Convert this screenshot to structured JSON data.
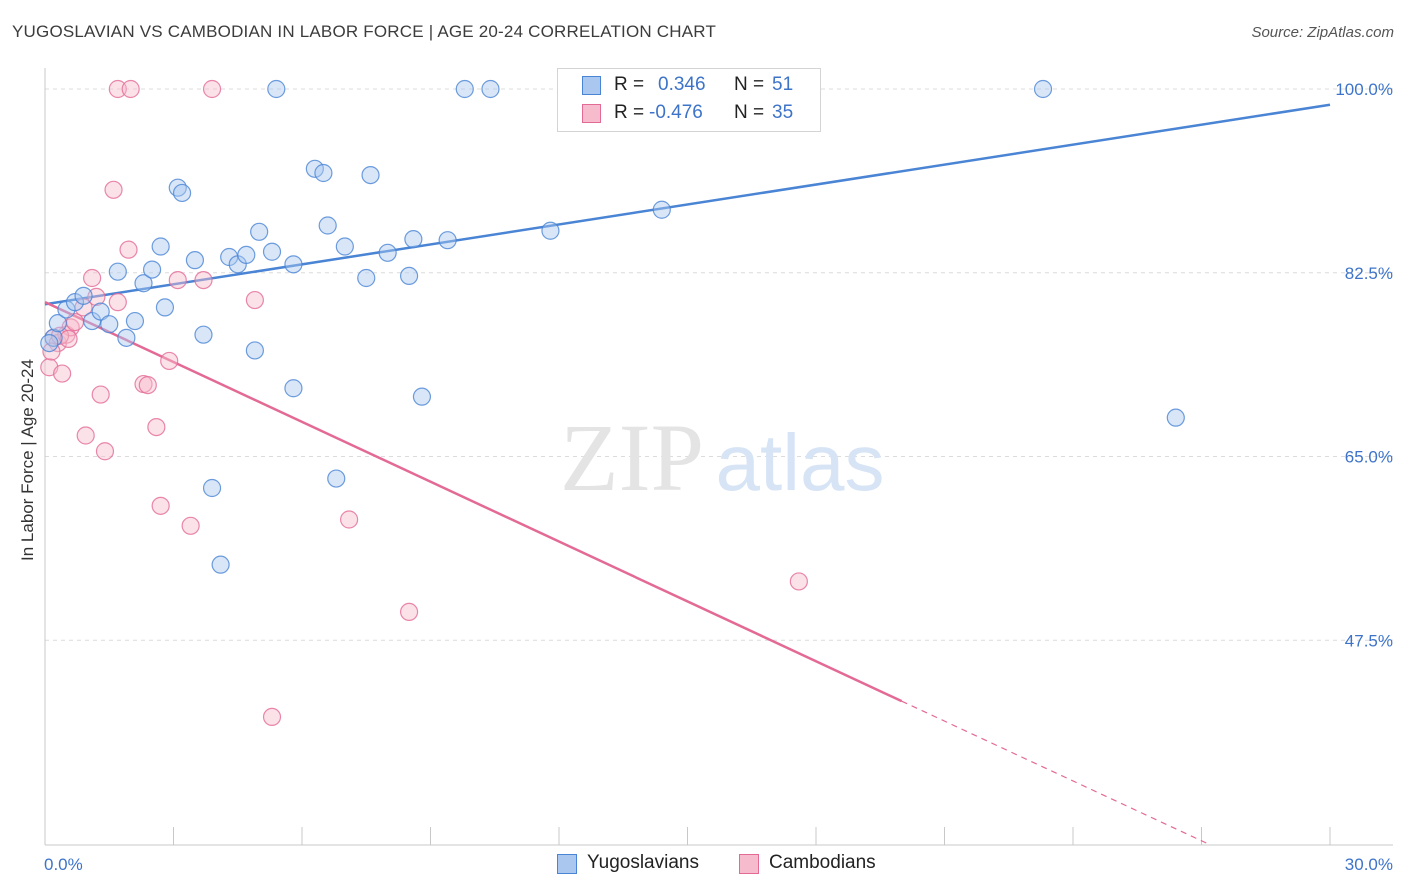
{
  "title": "YUGOSLAVIAN VS CAMBODIAN IN LABOR FORCE | AGE 20-24 CORRELATION CHART",
  "source": "Source: ZipAtlas.com",
  "watermark": {
    "zip": "ZIP",
    "atlas": "atlas"
  },
  "legend": {
    "r_label": "R =",
    "n_label": "N =",
    "rows": [
      {
        "r": "0.346",
        "n": "51"
      },
      {
        "r": "-0.476",
        "n": "35"
      }
    ]
  },
  "chart_data": {
    "type": "scatter",
    "title": "YUGOSLAVIAN VS CAMBODIAN IN LABOR FORCE | AGE 20-24 CORRELATION CHART",
    "xlabel": "",
    "ylabel": "In Labor Force | Age 20-24",
    "xlim": [
      0,
      30
    ],
    "ylim": [
      28,
      102
    ],
    "x_tick_labels": [
      "0.0%",
      "30.0%"
    ],
    "y_ticks": [
      {
        "value": 100,
        "label": "100.0%"
      },
      {
        "value": 82.5,
        "label": "82.5%"
      },
      {
        "value": 65,
        "label": "65.0%"
      },
      {
        "value": 47.5,
        "label": "47.5%"
      }
    ],
    "grid": "horizontal dashed",
    "legend_position": "top-center",
    "series": [
      {
        "name": "Yugoslavians",
        "color": "#4a84d4",
        "fill": "#a9c7ef",
        "trend": {
          "x1": 0,
          "y1": 79.5,
          "x2": 30,
          "y2": 98.5
        },
        "points": [
          {
            "x": 0.2,
            "y": 76.3
          },
          {
            "x": 0.3,
            "y": 77.7
          },
          {
            "x": 0.5,
            "y": 79.0
          },
          {
            "x": 0.7,
            "y": 79.7
          },
          {
            "x": 0.9,
            "y": 80.3
          },
          {
            "x": 1.1,
            "y": 77.9
          },
          {
            "x": 1.3,
            "y": 78.8
          },
          {
            "x": 1.5,
            "y": 77.6
          },
          {
            "x": 1.7,
            "y": 82.6
          },
          {
            "x": 1.9,
            "y": 76.3
          },
          {
            "x": 2.1,
            "y": 77.9
          },
          {
            "x": 2.3,
            "y": 81.5
          },
          {
            "x": 2.5,
            "y": 82.8
          },
          {
            "x": 2.7,
            "y": 85.0
          },
          {
            "x": 2.8,
            "y": 79.2
          },
          {
            "x": 3.1,
            "y": 90.6
          },
          {
            "x": 3.2,
            "y": 90.1
          },
          {
            "x": 3.5,
            "y": 83.7
          },
          {
            "x": 3.7,
            "y": 76.6
          },
          {
            "x": 3.9,
            "y": 62.0
          },
          {
            "x": 4.1,
            "y": 54.7
          },
          {
            "x": 4.3,
            "y": 84.0
          },
          {
            "x": 4.5,
            "y": 83.3
          },
          {
            "x": 4.7,
            "y": 84.2
          },
          {
            "x": 4.9,
            "y": 75.1
          },
          {
            "x": 5.0,
            "y": 86.4
          },
          {
            "x": 5.3,
            "y": 84.5
          },
          {
            "x": 5.4,
            "y": 100.0
          },
          {
            "x": 5.8,
            "y": 83.3
          },
          {
            "x": 5.8,
            "y": 71.5
          },
          {
            "x": 6.3,
            "y": 92.4
          },
          {
            "x": 6.5,
            "y": 92.0
          },
          {
            "x": 6.6,
            "y": 87.0
          },
          {
            "x": 6.8,
            "y": 62.9
          },
          {
            "x": 7.0,
            "y": 85.0
          },
          {
            "x": 7.5,
            "y": 82.0
          },
          {
            "x": 7.6,
            "y": 91.8
          },
          {
            "x": 8.0,
            "y": 84.4
          },
          {
            "x": 8.5,
            "y": 82.2
          },
          {
            "x": 8.6,
            "y": 85.7
          },
          {
            "x": 8.8,
            "y": 70.7
          },
          {
            "x": 9.4,
            "y": 85.6
          },
          {
            "x": 9.8,
            "y": 100.0
          },
          {
            "x": 10.4,
            "y": 100.0
          },
          {
            "x": 11.8,
            "y": 86.5
          },
          {
            "x": 13.8,
            "y": 100.0
          },
          {
            "x": 14.4,
            "y": 88.5
          },
          {
            "x": 15.5,
            "y": 100.0
          },
          {
            "x": 23.3,
            "y": 100.0
          },
          {
            "x": 26.4,
            "y": 68.7
          },
          {
            "x": 0.1,
            "y": 75.8
          }
        ]
      },
      {
        "name": "Cambodians",
        "color": "#e46a96",
        "fill": "#f6bccd",
        "trend": {
          "x1": 0,
          "y1": 79.7,
          "x2": 20.0,
          "y2": 41.7,
          "dash_x2": 30,
          "dash_y2": 22.7
        },
        "points": [
          {
            "x": 0.1,
            "y": 73.5
          },
          {
            "x": 0.2,
            "y": 76.3
          },
          {
            "x": 0.3,
            "y": 75.8
          },
          {
            "x": 0.4,
            "y": 72.9
          },
          {
            "x": 0.5,
            "y": 76.6
          },
          {
            "x": 0.6,
            "y": 77.3
          },
          {
            "x": 0.7,
            "y": 77.8
          },
          {
            "x": 0.9,
            "y": 79.2
          },
          {
            "x": 0.95,
            "y": 67.0
          },
          {
            "x": 1.1,
            "y": 82.0
          },
          {
            "x": 1.2,
            "y": 80.2
          },
          {
            "x": 1.3,
            "y": 70.9
          },
          {
            "x": 1.4,
            "y": 65.5
          },
          {
            "x": 1.6,
            "y": 90.4
          },
          {
            "x": 1.7,
            "y": 79.7
          },
          {
            "x": 1.7,
            "y": 100.0
          },
          {
            "x": 1.95,
            "y": 84.7
          },
          {
            "x": 2.0,
            "y": 100.0
          },
          {
            "x": 2.3,
            "y": 71.9
          },
          {
            "x": 2.4,
            "y": 71.8
          },
          {
            "x": 2.6,
            "y": 67.8
          },
          {
            "x": 2.7,
            "y": 60.3
          },
          {
            "x": 2.9,
            "y": 74.1
          },
          {
            "x": 3.1,
            "y": 81.8
          },
          {
            "x": 3.4,
            "y": 58.4
          },
          {
            "x": 3.7,
            "y": 81.8
          },
          {
            "x": 3.9,
            "y": 100.0
          },
          {
            "x": 4.9,
            "y": 79.9
          },
          {
            "x": 5.3,
            "y": 40.2
          },
          {
            "x": 7.1,
            "y": 59.0
          },
          {
            "x": 8.5,
            "y": 50.2
          },
          {
            "x": 17.6,
            "y": 53.1
          },
          {
            "x": 0.35,
            "y": 76.5
          },
          {
            "x": 0.55,
            "y": 76.2
          },
          {
            "x": 0.15,
            "y": 75.0
          }
        ]
      }
    ]
  },
  "bottom_legend": [
    {
      "label": "Yugoslavians"
    },
    {
      "label": "Cambodians"
    }
  ]
}
